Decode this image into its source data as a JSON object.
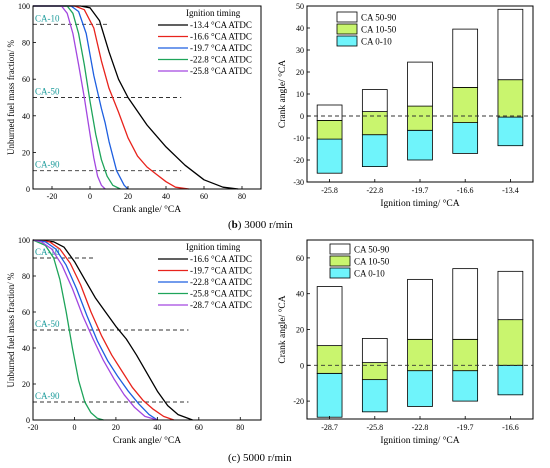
{
  "captions": [
    {
      "letter": "b",
      "text": " 3000 r/min"
    },
    {
      "letter": "c",
      "text": " 5000 r/min"
    }
  ],
  "colors": {
    "ca_50_90": "#ffffff",
    "ca_10_50": "#c9f56e",
    "ca_0_10": "#6ff4fb",
    "curves": [
      "#000000",
      "#e8231c",
      "#1e5fe0",
      "#1ea45a",
      "#a347e0"
    ]
  },
  "chart_data": [
    {
      "type": "line",
      "xlabel": "Crank angle/ °CA",
      "ylabel": "Unburned fuel mass fraction/ %",
      "xlim": [
        -30,
        90
      ],
      "ylim": [
        0,
        100
      ],
      "xticks": [
        "-20",
        "0",
        "20",
        "40",
        "60",
        "80"
      ],
      "yticks": [
        "0",
        "20",
        "40",
        "60",
        "80",
        "100"
      ],
      "legend_title": "Ignition timing",
      "reference_lines": [
        {
          "label": "CA-10",
          "y": 90
        },
        {
          "label": "CA-50",
          "y": 50
        },
        {
          "label": "CA-90",
          "y": 10
        }
      ],
      "series": [
        {
          "name": "-13.4 °CA ATDC",
          "color": "#000000",
          "x": [
            -30,
            -5,
            0,
            5,
            10,
            15,
            20,
            30,
            40,
            50,
            60,
            70,
            78
          ],
          "y": [
            100,
            100,
            99,
            92,
            75,
            60,
            50,
            35,
            23,
            13,
            5,
            1,
            0
          ]
        },
        {
          "name": "-16.6 °CA ATDC",
          "color": "#e8231c",
          "x": [
            -30,
            -8,
            -3,
            2,
            6,
            10,
            15,
            20,
            25,
            30,
            35,
            40,
            45,
            52
          ],
          "y": [
            100,
            100,
            98,
            88,
            70,
            55,
            42,
            28,
            18,
            12,
            8,
            4,
            1,
            0
          ]
        },
        {
          "name": "-19.7 °CA ATDC",
          "color": "#1e5fe0",
          "x": [
            -30,
            -10,
            -6,
            -2,
            2,
            6,
            8,
            10,
            14,
            18,
            20
          ],
          "y": [
            100,
            100,
            97,
            85,
            62,
            44,
            36,
            26,
            10,
            2,
            0
          ]
        },
        {
          "name": "-22.8 °CA ATDC",
          "color": "#1ea45a",
          "x": [
            -30,
            -12,
            -9,
            -6,
            -3,
            0,
            3,
            6,
            9,
            12,
            16
          ],
          "y": [
            100,
            100,
            96,
            85,
            68,
            48,
            30,
            16,
            7,
            2,
            0
          ]
        },
        {
          "name": "-25.8 °CA ATDC",
          "color": "#a347e0",
          "x": [
            -30,
            -15,
            -12,
            -9,
            -6,
            -3,
            0,
            2,
            4,
            6,
            8
          ],
          "y": [
            100,
            100,
            96,
            85,
            68,
            50,
            30,
            17,
            7,
            2,
            0
          ]
        }
      ]
    },
    {
      "type": "bar",
      "xlabel": "Ignition timing/ °CA",
      "ylabel": "Crank angle/ °CA",
      "categories": [
        "-25.8",
        "-22.8",
        "-19.7",
        "-16.6",
        "-13.4"
      ],
      "ylim": [
        -30,
        50
      ],
      "yticks": [
        "-30",
        "-20",
        "-10",
        "0",
        "10",
        "20",
        "30",
        "40",
        "50"
      ],
      "legend": [
        "CA 50-90",
        "CA 10-50",
        "CA  0-10"
      ],
      "series": [
        {
          "name": "CA 0-10",
          "bottom": [
            -26,
            -23,
            -20,
            -17,
            -13.5
          ],
          "top": [
            -10.5,
            -8.5,
            -6.5,
            -3,
            -0.5
          ]
        },
        {
          "name": "CA 10-50",
          "bottom": [
            -10.5,
            -8.5,
            -6.5,
            -3,
            -0.5
          ],
          "top": [
            -2,
            2,
            4.5,
            13,
            16.5
          ]
        },
        {
          "name": "CA 50-90",
          "bottom": [
            -2,
            2,
            4.5,
            13,
            16.5
          ],
          "top": [
            5,
            12,
            24.5,
            39.5,
            48.5
          ]
        }
      ]
    },
    {
      "type": "line",
      "xlabel": "Crank angle/ °CA",
      "ylabel": "Unburned fuel mass fraction/ %",
      "xlim": [
        -20,
        90
      ],
      "ylim": [
        0,
        100
      ],
      "xticks": [
        "-20",
        "0",
        "20",
        "40",
        "60",
        "80"
      ],
      "yticks": [
        "0",
        "20",
        "40",
        "60",
        "80",
        "100"
      ],
      "legend_title": "Ignition timing",
      "reference_lines": [
        {
          "label": "CA-10",
          "y": 90
        },
        {
          "label": "CA-50",
          "y": 50
        },
        {
          "label": "CA-90",
          "y": 10
        }
      ],
      "series": [
        {
          "name": "-16.6 °CA ATDC",
          "color": "#000000",
          "x": [
            -20,
            -10,
            -5,
            0,
            5,
            10,
            15,
            20,
            25,
            30,
            35,
            40,
            45,
            50,
            57
          ],
          "y": [
            100,
            99,
            96,
            88,
            78,
            68,
            60,
            52,
            45,
            36,
            26,
            16,
            8,
            3,
            0
          ]
        },
        {
          "name": "-19.7 °CA ATDC",
          "color": "#e8231c",
          "x": [
            -20,
            -12,
            -7,
            -2,
            3,
            8,
            13,
            18,
            23,
            28,
            33,
            38,
            43,
            48
          ],
          "y": [
            100,
            99,
            95,
            87,
            75,
            60,
            47,
            36,
            27,
            18,
            11,
            6,
            2,
            0
          ]
        },
        {
          "name": "-22.8 °CA ATDC",
          "color": "#1e5fe0",
          "x": [
            -20,
            -14,
            -9,
            -4,
            1,
            6,
            11,
            16,
            21,
            26,
            31,
            36,
            40
          ],
          "y": [
            100,
            99,
            95,
            86,
            73,
            58,
            44,
            33,
            24,
            16,
            9,
            3,
            0
          ]
        },
        {
          "name": "-25.8 °CA ATDC",
          "color": "#1ea45a",
          "x": [
            -20,
            -14,
            -10,
            -7,
            -4,
            -1,
            2,
            5,
            8,
            11,
            14
          ],
          "y": [
            100,
            97,
            90,
            78,
            60,
            40,
            22,
            10,
            4,
            1,
            0
          ]
        },
        {
          "name": "-28.7 °CA ATDC",
          "color": "#a347e0",
          "x": [
            -20,
            -16,
            -11,
            -6,
            -1,
            4,
            9,
            14,
            19,
            24,
            29,
            34,
            40
          ],
          "y": [
            100,
            99,
            95,
            86,
            73,
            58,
            45,
            33,
            23,
            14,
            7,
            2,
            0
          ]
        }
      ]
    },
    {
      "type": "bar",
      "xlabel": "Ignition timing/ °CA",
      "ylabel": "Crank angle/ °CA",
      "categories": [
        "-28.7",
        "-25.8",
        "-22.8",
        "-19.7",
        "-16.6"
      ],
      "ylim": [
        -30,
        70
      ],
      "yticks": [
        "-20",
        "0",
        "20",
        "40",
        "60"
      ],
      "legend": [
        "CA 50-90",
        "CA 10-50",
        "CA  0-10"
      ],
      "series": [
        {
          "name": "CA 0-10",
          "bottom": [
            -29,
            -26,
            -23,
            -20,
            -16.5
          ],
          "top": [
            -4.5,
            -8,
            -3,
            -3,
            0
          ]
        },
        {
          "name": "CA 10-50",
          "bottom": [
            -4.5,
            -8,
            -3,
            -3,
            0
          ],
          "top": [
            11,
            1.5,
            14.5,
            14.5,
            25.5
          ]
        },
        {
          "name": "CA 50-90",
          "bottom": [
            11,
            1.5,
            14.5,
            14.5,
            25.5
          ],
          "top": [
            44,
            15,
            48,
            54,
            52.5
          ]
        }
      ]
    }
  ]
}
